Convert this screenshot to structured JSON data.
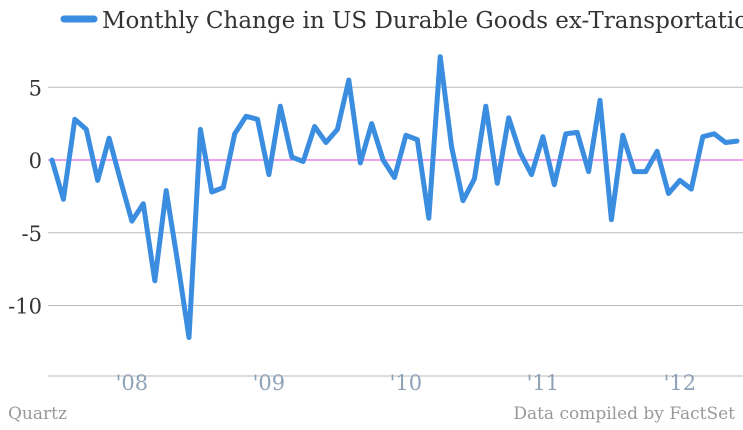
{
  "chart_data": {
    "type": "line",
    "title": "",
    "series": [
      {
        "name": "Monthly Change in US Durable Goods ex-Transportation",
        "color": "#3b8de0",
        "values": [
          0.0,
          -2.7,
          2.8,
          2.1,
          -1.4,
          1.5,
          -1.4,
          -4.2,
          -3.0,
          -8.3,
          -2.1,
          -7.0,
          -12.2,
          2.1,
          -2.2,
          -1.9,
          1.8,
          3.0,
          2.8,
          -1.0,
          3.7,
          0.2,
          -0.1,
          2.3,
          1.2,
          2.1,
          5.5,
          -0.2,
          2.5,
          0.0,
          -1.2,
          1.7,
          1.4,
          -4.0,
          7.1,
          0.9,
          -2.8,
          -1.3,
          3.7,
          -1.6,
          2.9,
          0.5,
          -1.0,
          1.6,
          -1.7,
          1.8,
          1.9,
          -0.8,
          4.1,
          -4.1,
          1.7,
          -0.8,
          -0.8,
          0.6,
          -2.3,
          -1.4,
          -2.0,
          1.6,
          1.8,
          1.2,
          1.3
        ]
      }
    ],
    "x_start": "2007-08",
    "x_end": "2012-08",
    "ylim": [
      -13,
      8
    ],
    "yticks": [
      5,
      0,
      -5,
      -10
    ],
    "ytick_labels": [
      "5",
      "0",
      "-5",
      "-10"
    ],
    "xticks": [
      {
        "label": "'08",
        "date": "2008-03"
      },
      {
        "label": "'09",
        "date": "2009-03"
      },
      {
        "label": "'10",
        "date": "2010-03"
      },
      {
        "label": "'11",
        "date": "2011-03"
      },
      {
        "label": "'12",
        "date": "2012-03"
      }
    ],
    "xlabel": "",
    "ylabel": "",
    "grid": true,
    "zero_line_color": "#dd44dd",
    "grid_color": "#bbbbbb",
    "legend": "top"
  },
  "footer": {
    "source_left": "Quartz",
    "source_right": "Data compiled by FactSet"
  }
}
